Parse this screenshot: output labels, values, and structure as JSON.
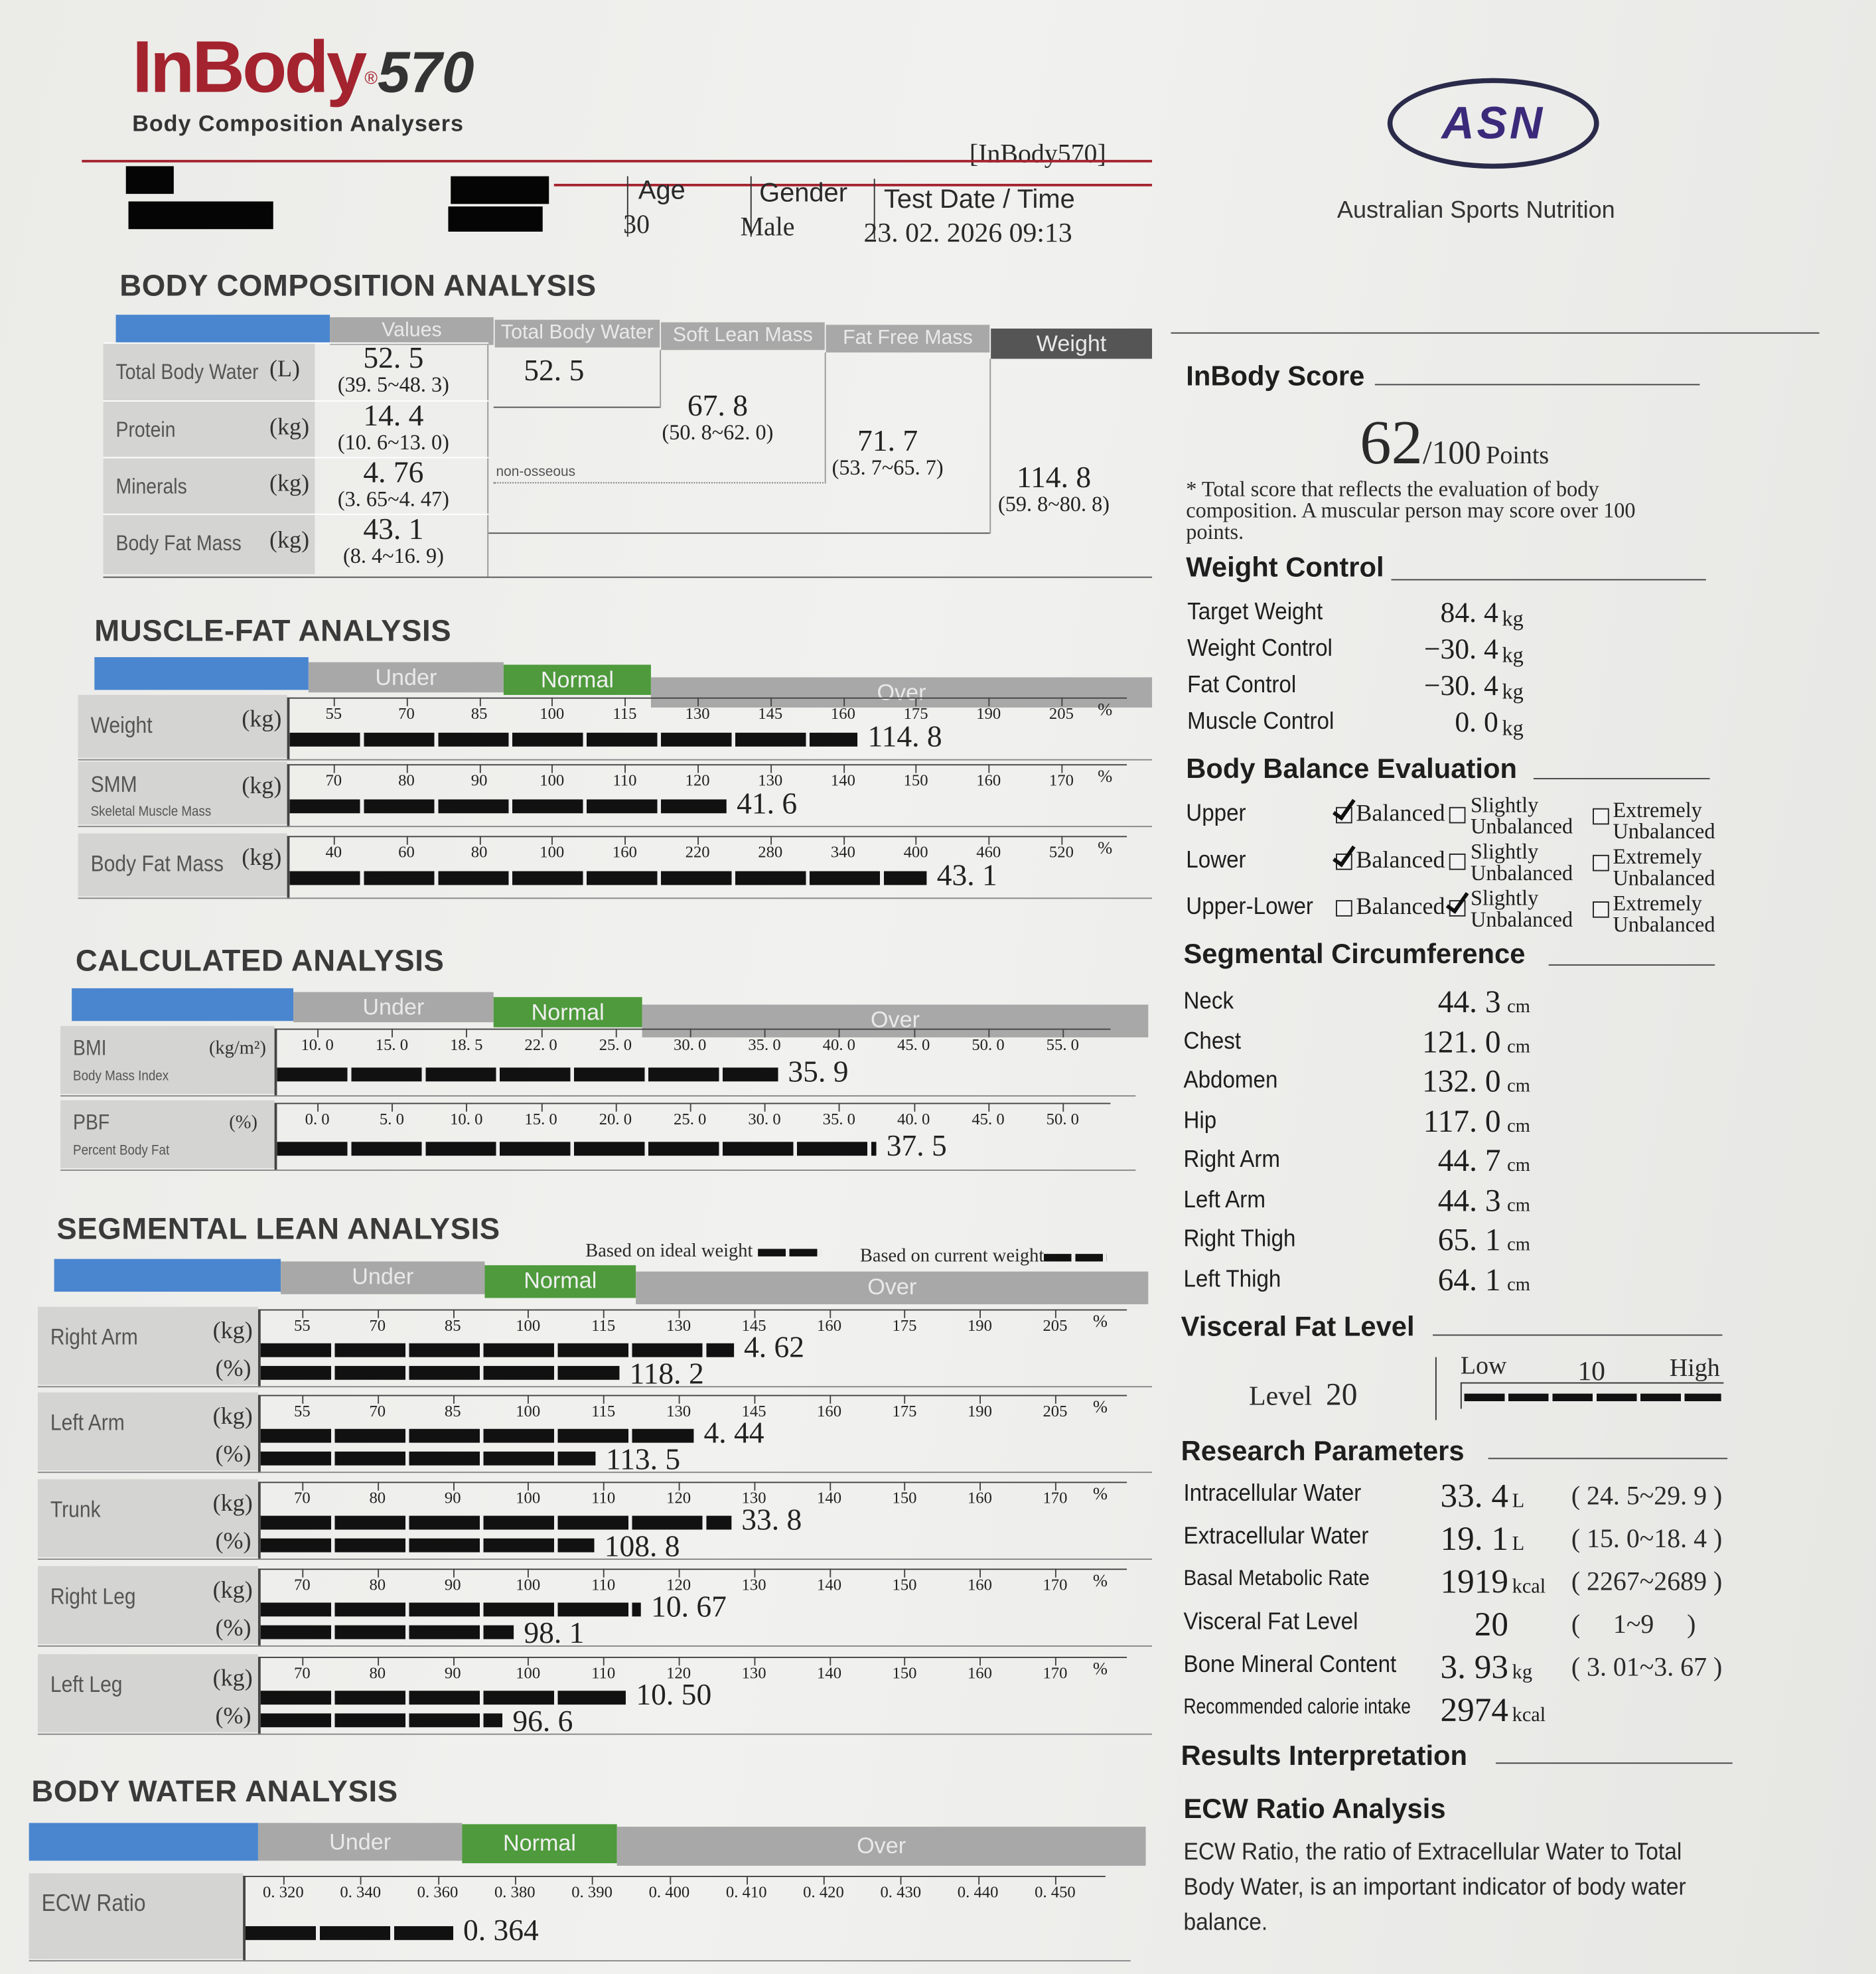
{
  "header": {
    "brand": "InBody",
    "model": "570",
    "registered": "®",
    "tagline": "Body Composition Analysers",
    "device_tag": "[InBody570]",
    "partner_logo": "ASN",
    "partner_name": "Australian Sports Nutrition",
    "age_label": "Age",
    "age": "30",
    "gender_label": "Gender",
    "gender": "Male",
    "date_label": "Test Date / Time",
    "date": "23. 02. 2026 09:13"
  },
  "body_comp": {
    "title": "BODY COMPOSITION ANALYSIS",
    "columns": [
      "Values",
      "Total Body Water",
      "Soft Lean Mass",
      "Fat Free Mass",
      "Weight"
    ],
    "rows": [
      {
        "label": "Total Body Water",
        "unit": "(L)",
        "value": "52. 5",
        "range": "(39. 5~48. 3)"
      },
      {
        "label": "Protein",
        "unit": "(kg)",
        "value": "14. 4",
        "range": "(10. 6~13. 0)"
      },
      {
        "label": "Minerals",
        "unit": "(kg)",
        "value": "4. 76",
        "range": "(3. 65~4. 47)"
      },
      {
        "label": "Body Fat Mass",
        "unit": "(kg)",
        "value": "43. 1",
        "range": "(8. 4~16. 9)"
      }
    ],
    "tbw": "52. 5",
    "slm": {
      "value": "67. 8",
      "range": "(50. 8~62. 0)"
    },
    "ffm": {
      "value": "71. 7",
      "range": "(53. 7~65. 7)"
    },
    "weight": {
      "value": "114. 8",
      "range": "(59. 8~80. 8)"
    },
    "non_osseous": "non-osseous"
  },
  "bands": {
    "under": "Under",
    "normal": "Normal",
    "over": "Over"
  },
  "colors": {
    "blue": "#4a86cf",
    "normal_green": "#4e9a3c",
    "band_gray": "#a8a8a8",
    "brand_red": "#a3232e",
    "asn_purple": "#3b2a7a"
  },
  "muscle_fat": {
    "title": "MUSCLE-FAT ANALYSIS",
    "rows": [
      {
        "label": "Weight",
        "unit": "(kg)",
        "ticks": [
          "55",
          "70",
          "85",
          "100",
          "115",
          "130",
          "145",
          "160",
          "175",
          "190",
          "205"
        ],
        "tick_unit": "%",
        "bars": [
          {
            "value": "114. 8",
            "scale": 163
          }
        ]
      },
      {
        "label": "SMM",
        "sublabel": "Skeletal Muscle Mass",
        "unit": "(kg)",
        "ticks": [
          "70",
          "80",
          "90",
          "100",
          "110",
          "120",
          "130",
          "140",
          "150",
          "160",
          "170"
        ],
        "tick_unit": "%",
        "bars": [
          {
            "value": "41. 6",
            "scale": 124
          }
        ]
      },
      {
        "label": "Body Fat Mass",
        "unit": "(kg)",
        "ticks": [
          "40",
          "60",
          "80",
          "100",
          "160",
          "220",
          "280",
          "340",
          "400",
          "460",
          "520"
        ],
        "tick_unit": "%",
        "bars": [
          {
            "value": "43. 1",
            "scale": 409
          }
        ]
      }
    ]
  },
  "calculated": {
    "title": "CALCULATED ANALYSIS",
    "rows": [
      {
        "label": "BMI",
        "sublabel": "Body Mass Index",
        "unit": "(kg/m²)",
        "ticks": [
          "10. 0",
          "15. 0",
          "18. 5",
          "22. 0",
          "25. 0",
          "30. 0",
          "35. 0",
          "40. 0",
          "45. 0",
          "50. 0",
          "55. 0"
        ],
        "bars": [
          {
            "value": "35. 9",
            "scale": 35.9
          }
        ]
      },
      {
        "label": "PBF",
        "sublabel": "Percent Body Fat",
        "unit": "(%)",
        "ticks": [
          "0. 0",
          "5. 0",
          "10. 0",
          "15. 0",
          "20. 0",
          "25. 0",
          "30. 0",
          "35. 0",
          "40. 0",
          "45. 0",
          "50. 0"
        ],
        "bars": [
          {
            "value": "37. 5",
            "scale": 37.5
          }
        ]
      }
    ]
  },
  "segmental": {
    "title": "SEGMENTAL LEAN ANALYSIS",
    "legend_ideal": "Based on ideal weight",
    "legend_current": "Based on current weight",
    "rows": [
      {
        "label": "Right Arm",
        "unit": "(kg)",
        "unit2": "(%)",
        "ticks": [
          "55",
          "70",
          "85",
          "100",
          "115",
          "130",
          "145",
          "160",
          "175",
          "190",
          "205"
        ],
        "tick_unit": "%",
        "bars": [
          {
            "value": "4. 62",
            "scale": 141
          },
          {
            "value": "118. 2",
            "scale": 118.2
          }
        ]
      },
      {
        "label": "Left Arm",
        "unit": "(kg)",
        "unit2": "(%)",
        "ticks": [
          "55",
          "70",
          "85",
          "100",
          "115",
          "130",
          "145",
          "160",
          "175",
          "190",
          "205"
        ],
        "tick_unit": "%",
        "bars": [
          {
            "value": "4. 44",
            "scale": 133
          },
          {
            "value": "113. 5",
            "scale": 113.5
          }
        ]
      },
      {
        "label": "Trunk",
        "unit": "(kg)",
        "unit2": "(%)",
        "ticks": [
          "70",
          "80",
          "90",
          "100",
          "110",
          "120",
          "130",
          "140",
          "150",
          "160",
          "170"
        ],
        "tick_unit": "%",
        "bars": [
          {
            "value": "33. 8",
            "scale": 127
          },
          {
            "value": "108. 8",
            "scale": 108.8
          }
        ]
      },
      {
        "label": "Right Leg",
        "unit": "(kg)",
        "unit2": "(%)",
        "ticks": [
          "70",
          "80",
          "90",
          "100",
          "110",
          "120",
          "130",
          "140",
          "150",
          "160",
          "170"
        ],
        "tick_unit": "%",
        "bars": [
          {
            "value": "10. 67",
            "scale": 115
          },
          {
            "value": "98. 1",
            "scale": 98.1
          }
        ]
      },
      {
        "label": "Left Leg",
        "unit": "(kg)",
        "unit2": "(%)",
        "ticks": [
          "70",
          "80",
          "90",
          "100",
          "110",
          "120",
          "130",
          "140",
          "150",
          "160",
          "170"
        ],
        "tick_unit": "%",
        "bars": [
          {
            "value": "10. 50",
            "scale": 113
          },
          {
            "value": "96. 6",
            "scale": 96.6
          }
        ]
      }
    ]
  },
  "body_water": {
    "title": "BODY WATER ANALYSIS",
    "rows": [
      {
        "label": "ECW Ratio",
        "ticks": [
          "0. 320",
          "0. 340",
          "0. 360",
          "0. 380",
          "0. 390",
          "0. 400",
          "0. 410",
          "0. 420",
          "0. 430",
          "0. 440",
          "0. 450"
        ],
        "bars": [
          {
            "value": "0. 364",
            "scale": 0.364
          }
        ]
      }
    ]
  },
  "score": {
    "title": "InBody Score",
    "value": "62",
    "max": "/100",
    "unit": "Points",
    "fraction": 0.62,
    "note": "* Total score that reflects the evaluation of body composition. A muscular person may score over 100 points."
  },
  "weight_control": {
    "title": "Weight Control",
    "rows": [
      {
        "label": "Target Weight",
        "value": "84. 4",
        "unit": "kg"
      },
      {
        "label": "Weight Control",
        "value": "−30. 4",
        "unit": "kg"
      },
      {
        "label": "Fat Control",
        "value": "−30. 4",
        "unit": "kg"
      },
      {
        "label": "Muscle Control",
        "value": "0. 0",
        "unit": "kg"
      }
    ]
  },
  "balance": {
    "title": "Body Balance Evaluation",
    "options": {
      "balanced": "Balanced",
      "slightly_1": "Slightly",
      "slightly_2": "Unbalanced",
      "extremely_1": "Extremely",
      "extremely_2": "Unbalanced"
    },
    "rows": [
      {
        "label": "Upper",
        "checked": "balanced"
      },
      {
        "label": "Lower",
        "checked": "balanced"
      },
      {
        "label": "Upper-Lower",
        "checked": "slightly"
      }
    ]
  },
  "circumference": {
    "title": "Segmental Circumference",
    "unit": "cm",
    "rows": [
      {
        "label": "Neck",
        "value": "44. 3"
      },
      {
        "label": "Chest",
        "value": "121. 0"
      },
      {
        "label": "Abdomen",
        "value": "132. 0"
      },
      {
        "label": "Hip",
        "value": "117. 0"
      },
      {
        "label": "Right Arm",
        "value": "44. 7"
      },
      {
        "label": "Left Arm",
        "value": "44. 3"
      },
      {
        "label": "Right Thigh",
        "value": "65. 1"
      },
      {
        "label": "Left Thigh",
        "value": "64. 1"
      }
    ]
  },
  "visceral": {
    "title": "Visceral Fat Level",
    "level_label": "Level",
    "level": "20",
    "low": "Low",
    "mid": "10",
    "high": "High"
  },
  "research": {
    "title": "Research Parameters",
    "rows": [
      {
        "label": "Intracellular Water",
        "value": "33. 4",
        "unit": "L",
        "range": "( 24. 5~29. 9 )"
      },
      {
        "label": "Extracellular Water",
        "value": "19. 1",
        "unit": "L",
        "range": "( 15. 0~18. 4 )"
      },
      {
        "label": "Basal Metabolic Rate",
        "value": "1919",
        "unit": "kcal",
        "range": "( 2267~2689 )"
      },
      {
        "label": "Visceral Fat Level",
        "value": "20",
        "unit": "",
        "range": "(     1~9     )"
      },
      {
        "label": "Bone Mineral Content",
        "value": "3. 93",
        "unit": "kg",
        "range": "( 3. 01~3. 67 )"
      },
      {
        "label": "Recommended calorie intake",
        "value": "2974",
        "unit": "kcal",
        "range": ""
      }
    ]
  },
  "results": {
    "title": "Results Interpretation",
    "subtitle": "ECW Ratio Analysis",
    "text": "ECW Ratio, the ratio of Extracellular Water to Total Body Water, is an important indicator of body water balance."
  }
}
